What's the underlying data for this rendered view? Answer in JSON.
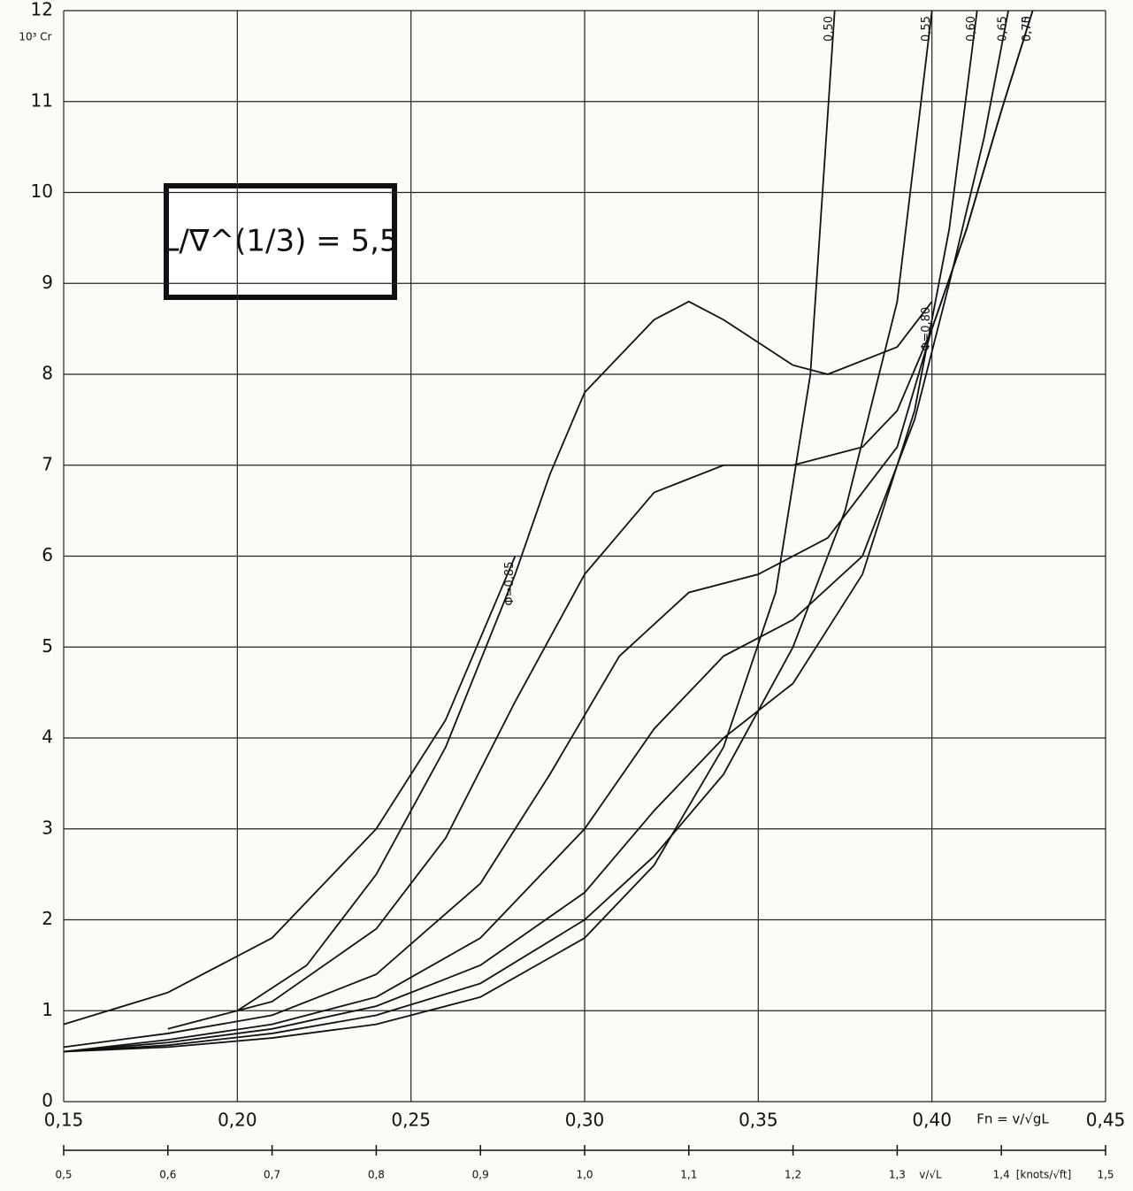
{
  "chart_data": {
    "type": "line",
    "title": "L/∇^(1/3) = 5,5",
    "ylabel": "10³ Cr",
    "xlabel": "Fn = v/√gL",
    "x2label": "v/√L",
    "x2unit": "[knots/√ft]",
    "xlim": [
      0.15,
      0.45
    ],
    "xticks": [
      {
        "value": 0.15,
        "label": "0,15"
      },
      {
        "value": 0.2,
        "label": "0,20"
      },
      {
        "value": 0.25,
        "label": "0,25"
      },
      {
        "value": 0.3,
        "label": "0,30"
      },
      {
        "value": 0.35,
        "label": "0,35"
      },
      {
        "value": 0.4,
        "label": "0,40"
      },
      {
        "value": 0.45,
        "label": "0,45"
      }
    ],
    "x2lim": [
      0.5,
      1.5
    ],
    "x2ticks": [
      {
        "value": 0.5,
        "label": "0,5"
      },
      {
        "value": 0.6,
        "label": "0,6"
      },
      {
        "value": 0.7,
        "label": "0,7"
      },
      {
        "value": 0.8,
        "label": "0,8"
      },
      {
        "value": 0.9,
        "label": "0,9"
      },
      {
        "value": 1.0,
        "label": "1,0"
      },
      {
        "value": 1.1,
        "label": "1,1"
      },
      {
        "value": 1.2,
        "label": "1,2"
      },
      {
        "value": 1.3,
        "label": "1,3"
      },
      {
        "value": 1.4,
        "label": "1,4"
      },
      {
        "value": 1.5,
        "label": "1,5"
      }
    ],
    "ylim": [
      0,
      12
    ],
    "yticks": [
      0,
      1,
      2,
      3,
      4,
      5,
      6,
      7,
      8,
      9,
      10,
      11,
      12
    ],
    "grid": true,
    "series": [
      {
        "name": "0,50",
        "color": "#111111",
        "x": [
          0.15,
          0.18,
          0.21,
          0.24,
          0.27,
          0.3,
          0.32,
          0.34,
          0.355,
          0.365,
          0.372
        ],
        "values": [
          0.55,
          0.6,
          0.7,
          0.85,
          1.15,
          1.8,
          2.6,
          3.9,
          5.6,
          8.0,
          12
        ]
      },
      {
        "name": "0,55",
        "color": "#111111",
        "x": [
          0.15,
          0.18,
          0.21,
          0.24,
          0.27,
          0.3,
          0.32,
          0.34,
          0.36,
          0.375,
          0.39,
          0.4
        ],
        "values": [
          0.55,
          0.62,
          0.75,
          0.95,
          1.3,
          2.0,
          2.7,
          3.6,
          5.0,
          6.5,
          8.8,
          12
        ]
      },
      {
        "name": "0,60",
        "color": "#111111",
        "x": [
          0.15,
          0.18,
          0.21,
          0.24,
          0.27,
          0.3,
          0.32,
          0.34,
          0.36,
          0.38,
          0.395,
          0.405,
          0.413
        ],
        "values": [
          0.55,
          0.65,
          0.8,
          1.05,
          1.5,
          2.3,
          3.2,
          4.0,
          4.6,
          5.8,
          7.6,
          9.6,
          12
        ]
      },
      {
        "name": "0,65",
        "color": "#111111",
        "x": [
          0.15,
          0.18,
          0.21,
          0.24,
          0.27,
          0.3,
          0.32,
          0.34,
          0.36,
          0.38,
          0.395,
          0.405,
          0.415,
          0.422
        ],
        "values": [
          0.55,
          0.68,
          0.85,
          1.15,
          1.8,
          3.0,
          4.1,
          4.9,
          5.3,
          6.0,
          7.5,
          9.0,
          10.6,
          12
        ]
      },
      {
        "name": "0,70",
        "color": "#111111",
        "x": [
          0.15,
          0.18,
          0.21,
          0.24,
          0.27,
          0.29,
          0.31,
          0.33,
          0.35,
          0.37,
          0.39,
          0.4,
          0.41,
          0.42,
          0.429
        ],
        "values": [
          0.6,
          0.75,
          0.95,
          1.4,
          2.4,
          3.6,
          4.9,
          5.6,
          5.8,
          6.2,
          7.2,
          8.5,
          9.6,
          10.9,
          12
        ]
      },
      {
        "name": "0,75",
        "color": "#111111",
        "x": [
          0.18,
          0.21,
          0.24,
          0.26,
          0.28,
          0.3,
          0.32,
          0.34,
          0.36,
          0.38,
          0.39,
          0.4,
          0.41,
          0.42,
          0.429
        ],
        "values": [
          0.8,
          1.1,
          1.9,
          2.9,
          4.4,
          5.8,
          6.7,
          7.0,
          7.0,
          7.2,
          7.6,
          8.5,
          9.6,
          10.9,
          12
        ]
      },
      {
        "name": "Φ=0,80",
        "color": "#111111",
        "x": [
          0.2,
          0.22,
          0.24,
          0.26,
          0.28,
          0.29,
          0.3,
          0.32,
          0.33,
          0.34,
          0.36,
          0.37,
          0.39,
          0.4
        ],
        "values": [
          1.0,
          1.5,
          2.5,
          3.9,
          5.8,
          6.9,
          7.8,
          8.6,
          8.8,
          8.6,
          8.1,
          8.0,
          8.3,
          8.8
        ]
      },
      {
        "name": "Φ=0,85",
        "color": "#111111",
        "x": [
          0.15,
          0.18,
          0.21,
          0.24,
          0.26,
          0.28
        ],
        "values": [
          0.85,
          1.2,
          1.8,
          3.0,
          4.2,
          6.0
        ]
      }
    ]
  }
}
